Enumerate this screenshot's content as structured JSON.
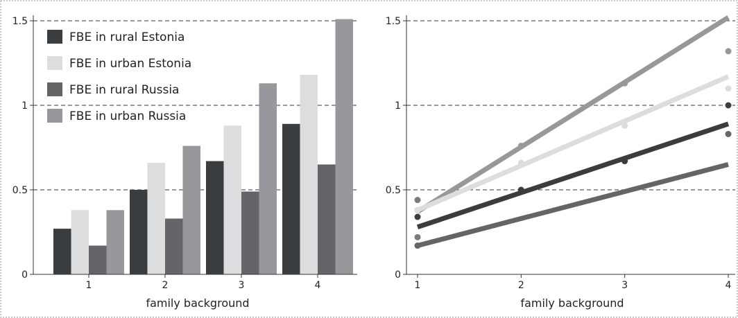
{
  "chart_data": [
    {
      "type": "bar",
      "xlabel": "family background",
      "ylabel": "",
      "ylim": [
        0,
        1.5
      ],
      "yticks": [
        0,
        0.5,
        1,
        1.5
      ],
      "ytick_labels": [
        "0",
        "0.5",
        "1",
        "1.5"
      ],
      "categories": [
        "1",
        "2",
        "3",
        "4"
      ],
      "grid": "dashed horizontal at 0.5, 1, 1.5",
      "legend_position": "top-left",
      "series": [
        {
          "name": "FBE in rural Estonia",
          "color": "#3a3d40",
          "values": [
            0.27,
            0.5,
            0.67,
            0.89
          ]
        },
        {
          "name": "FBE in urban Estonia",
          "color": "#dcdddf",
          "values": [
            0.38,
            0.66,
            0.88,
            1.18
          ]
        },
        {
          "name": "FBE in rural Russia",
          "color": "#646569",
          "values": [
            0.17,
            0.33,
            0.49,
            0.65
          ]
        },
        {
          "name": "FBE in urban Russia",
          "color": "#97989b",
          "values": [
            0.38,
            0.76,
            1.13,
            1.51
          ]
        }
      ]
    },
    {
      "type": "line",
      "xlabel": "family background",
      "ylabel": "",
      "ylim": [
        0,
        1.5
      ],
      "yticks": [
        0,
        0.5,
        1,
        1.5
      ],
      "ytick_labels": [
        "0",
        "0.5",
        "1",
        "1.5"
      ],
      "x": [
        1,
        2,
        3,
        4
      ],
      "xtick_labels": [
        "1",
        "2",
        "3",
        "4"
      ],
      "grid": "dashed horizontal at 0.5, 1, 1.5",
      "series": [
        {
          "color": "#97989b",
          "fit": [
            0.37,
            1.52
          ],
          "points": [
            [
              1,
              0.38
            ],
            [
              2,
              0.76
            ],
            [
              3,
              1.13
            ],
            [
              4,
              1.32
            ]
          ]
        },
        {
          "color": "#dcdddf",
          "fit": [
            0.38,
            1.17
          ],
          "points": [
            [
              1,
              0.38
            ],
            [
              2,
              0.66
            ],
            [
              3,
              0.88
            ],
            [
              4,
              1.1
            ]
          ]
        },
        {
          "color": "#3a3d40",
          "fit": [
            0.28,
            0.89
          ],
          "points": [
            [
              1,
              0.34
            ],
            [
              2,
              0.5
            ],
            [
              3,
              0.67
            ],
            [
              4,
              1.0
            ]
          ]
        },
        {
          "color": "#646569",
          "fit": [
            0.17,
            0.65
          ],
          "points": [
            [
              1,
              0.17
            ],
            [
              4,
              0.83
            ]
          ]
        }
      ],
      "extra_points": [
        {
          "color": "#7a7b7e",
          "points": [
            [
              1,
              0.44
            ],
            [
              1,
              0.22
            ]
          ]
        }
      ]
    }
  ]
}
